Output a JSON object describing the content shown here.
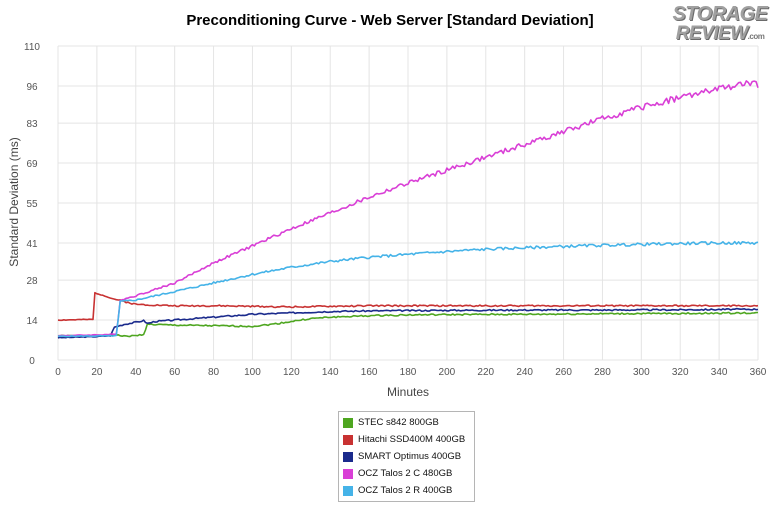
{
  "chart_data": {
    "type": "line",
    "title": "Preconditioning Curve - Web Server [Standard Deviation]",
    "xlabel": "Minutes",
    "ylabel": "Standard Deviation (ms)",
    "xlim": [
      0,
      360
    ],
    "ylim": [
      0,
      110
    ],
    "xticks": [
      0,
      20,
      40,
      60,
      80,
      100,
      120,
      140,
      160,
      180,
      200,
      220,
      240,
      260,
      280,
      300,
      320,
      340,
      360
    ],
    "yticks": [
      0,
      14,
      28,
      41,
      55,
      69,
      83,
      96,
      110
    ],
    "grid": true,
    "legend_position": "bottom-center",
    "series": [
      {
        "name": "STEC s842 800GB",
        "color": "#4ea620",
        "points": [
          [
            0,
            8.5
          ],
          [
            20,
            8.5
          ],
          [
            30,
            8.8
          ],
          [
            34,
            8.3
          ],
          [
            40,
            8.5
          ],
          [
            44,
            9
          ],
          [
            46,
            12.5
          ],
          [
            60,
            12.2
          ],
          [
            80,
            12
          ],
          [
            100,
            11.8
          ],
          [
            110,
            12.5
          ],
          [
            120,
            13.5
          ],
          [
            130,
            14.5
          ],
          [
            140,
            15
          ],
          [
            160,
            15.5
          ],
          [
            180,
            15.8
          ],
          [
            200,
            15.9
          ],
          [
            240,
            16
          ],
          [
            280,
            16.2
          ],
          [
            320,
            16.3
          ],
          [
            360,
            16.5
          ]
        ]
      },
      {
        "name": "Hitachi SSD400M 400GB",
        "color": "#c83232",
        "points": [
          [
            0,
            14
          ],
          [
            18,
            14.2
          ],
          [
            19,
            23.5
          ],
          [
            24,
            22.5
          ],
          [
            28,
            21.5
          ],
          [
            34,
            20.5
          ],
          [
            40,
            19.5
          ],
          [
            60,
            19
          ],
          [
            80,
            19
          ],
          [
            100,
            18.8
          ],
          [
            120,
            18.6
          ],
          [
            140,
            18.8
          ],
          [
            160,
            19
          ],
          [
            200,
            19
          ],
          [
            240,
            19
          ],
          [
            280,
            19
          ],
          [
            320,
            19
          ],
          [
            360,
            19
          ]
        ]
      },
      {
        "name": "SMART Optimus 400GB",
        "color": "#1a2a8c",
        "points": [
          [
            0,
            7.8
          ],
          [
            20,
            8.2
          ],
          [
            27,
            8.5
          ],
          [
            29,
            11.5
          ],
          [
            34,
            12.5
          ],
          [
            40,
            13.2
          ],
          [
            44,
            13.8
          ],
          [
            46,
            12.8
          ],
          [
            50,
            13.5
          ],
          [
            60,
            14
          ],
          [
            80,
            15
          ],
          [
            100,
            16
          ],
          [
            120,
            16.5
          ],
          [
            140,
            17
          ],
          [
            160,
            17.2
          ],
          [
            200,
            17.4
          ],
          [
            240,
            17.5
          ],
          [
            280,
            17.5
          ],
          [
            320,
            17.6
          ],
          [
            360,
            17.8
          ]
        ]
      },
      {
        "name": "OCZ Talos 2 C 480GB",
        "color": "#d93fd6",
        "points": [
          [
            0,
            8.5
          ],
          [
            20,
            8.8
          ],
          [
            30,
            9
          ],
          [
            32,
            21
          ],
          [
            40,
            22.5
          ],
          [
            60,
            27
          ],
          [
            80,
            34
          ],
          [
            100,
            40
          ],
          [
            120,
            46
          ],
          [
            140,
            51.5
          ],
          [
            160,
            57
          ],
          [
            180,
            62
          ],
          [
            200,
            66.5
          ],
          [
            220,
            71
          ],
          [
            240,
            75.5
          ],
          [
            260,
            80
          ],
          [
            280,
            84.5
          ],
          [
            300,
            88.5
          ],
          [
            320,
            92
          ],
          [
            340,
            95
          ],
          [
            355,
            97
          ],
          [
            360,
            96.5
          ]
        ]
      },
      {
        "name": "OCZ Talos 2 R 400GB",
        "color": "#45b3e8",
        "points": [
          [
            0,
            8.3
          ],
          [
            20,
            8.4
          ],
          [
            30,
            8.5
          ],
          [
            32,
            20.5
          ],
          [
            40,
            21
          ],
          [
            60,
            24
          ],
          [
            80,
            27
          ],
          [
            100,
            30
          ],
          [
            120,
            32.5
          ],
          [
            140,
            34.5
          ],
          [
            160,
            36
          ],
          [
            180,
            37
          ],
          [
            200,
            38
          ],
          [
            220,
            38.8
          ],
          [
            240,
            39.3
          ],
          [
            260,
            39.8
          ],
          [
            280,
            40.2
          ],
          [
            300,
            40.5
          ],
          [
            320,
            40.8
          ],
          [
            340,
            41
          ],
          [
            360,
            41
          ]
        ]
      }
    ]
  },
  "logo": {
    "line1": "STORAGE",
    "line2": "REVIEW",
    "suffix": ".com"
  }
}
